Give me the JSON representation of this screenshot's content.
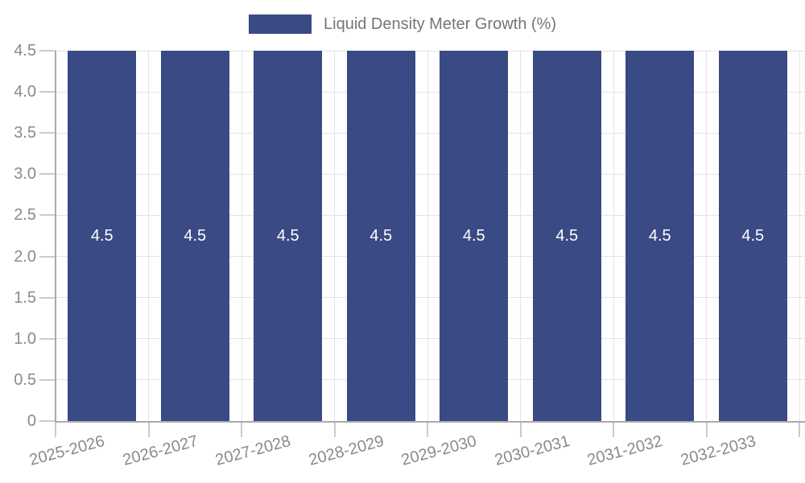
{
  "chart_data": {
    "type": "bar",
    "title": "Liquid Density Meter Growth (%)",
    "categories": [
      "2025-2026",
      "2026-2027",
      "2027-2028",
      "2028-2029",
      "2029-2030",
      "2030-2031",
      "2031-2032",
      "2032-2033"
    ],
    "values": [
      4.5,
      4.5,
      4.5,
      4.5,
      4.5,
      4.5,
      4.5,
      4.5
    ],
    "bar_labels": [
      "4.5",
      "4.5",
      "4.5",
      "4.5",
      "4.5",
      "4.5",
      "4.5",
      "4.5"
    ],
    "xlabel": "",
    "ylabel": "",
    "ylim": [
      0,
      4.5
    ],
    "yticks": [
      "0",
      "0.5",
      "1.0",
      "1.5",
      "2.0",
      "2.5",
      "3.0",
      "3.5",
      "4.0",
      "4.5"
    ],
    "grid": true,
    "legend": {
      "label": "Liquid Density Meter Growth (%)",
      "position": "top-center"
    },
    "colors": {
      "bar": "#3A4A84",
      "bar_label_text": "#FFFFFF",
      "legend_swatch": "#3A4A84",
      "legend_text": "#757575",
      "axis_label": "#8A8A8A",
      "gridline": "#E4E4E4",
      "axis_line": "#ABABAB",
      "tick": "#CBCBCB",
      "background": "#FFFFFF"
    }
  }
}
